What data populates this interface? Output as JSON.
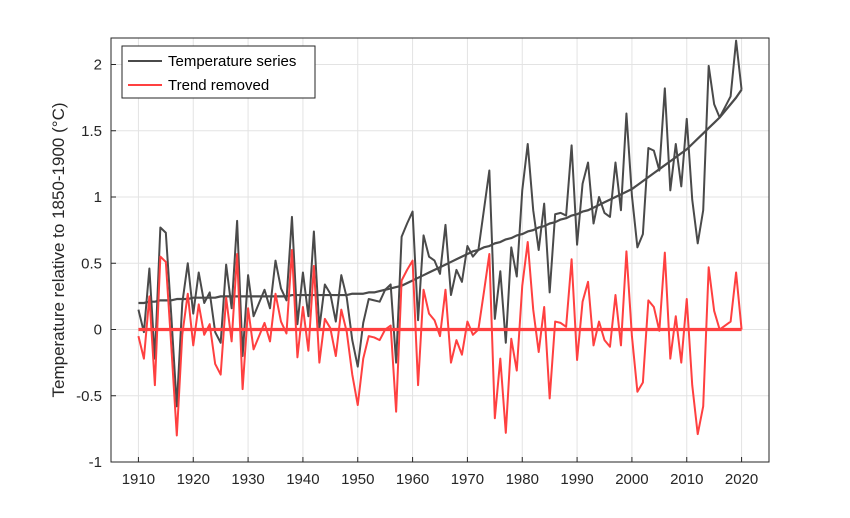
{
  "chart_data": {
    "type": "line",
    "xlabel": "",
    "ylabel": "Temperature relative to 1850-1900 (°C)",
    "xlim": [
      1905,
      2025
    ],
    "ylim": [
      -1,
      2.2
    ],
    "xticks": [
      1910,
      1920,
      1930,
      1940,
      1950,
      1960,
      1970,
      1980,
      1990,
      2000,
      2010,
      2020
    ],
    "yticks": [
      -1,
      -0.5,
      0,
      0.5,
      1,
      1.5,
      2
    ],
    "ytick_labels": [
      "-1",
      "-0.5",
      "0",
      "0.5",
      "1",
      "1.5",
      "2"
    ],
    "grid": true,
    "legend_position": "top-left",
    "x": [
      1910,
      1911,
      1912,
      1913,
      1914,
      1915,
      1916,
      1917,
      1918,
      1919,
      1920,
      1921,
      1922,
      1923,
      1924,
      1925,
      1926,
      1927,
      1928,
      1929,
      1930,
      1931,
      1932,
      1933,
      1934,
      1935,
      1936,
      1937,
      1938,
      1939,
      1940,
      1941,
      1942,
      1943,
      1944,
      1945,
      1946,
      1947,
      1948,
      1949,
      1950,
      1951,
      1952,
      1953,
      1954,
      1955,
      1956,
      1957,
      1958,
      1959,
      1960,
      1961,
      1962,
      1963,
      1964,
      1965,
      1966,
      1967,
      1968,
      1969,
      1970,
      1971,
      1972,
      1973,
      1974,
      1975,
      1976,
      1977,
      1978,
      1979,
      1980,
      1981,
      1982,
      1983,
      1984,
      1985,
      1986,
      1987,
      1988,
      1989,
      1990,
      1991,
      1992,
      1993,
      1994,
      1995,
      1996,
      1997,
      1998,
      1999,
      2000,
      2001,
      2002,
      2003,
      2004,
      2005,
      2006,
      2007,
      2008,
      2009,
      2010,
      2011,
      2012,
      2013,
      2014,
      2015,
      2016,
      2017,
      2018,
      2019,
      2020
    ],
    "series": [
      {
        "name": "Temperature series",
        "color": "#4a4a4a",
        "values": [
          0.15,
          -0.02,
          0.46,
          -0.22,
          0.77,
          0.73,
          0.1,
          -0.58,
          0.2,
          0.5,
          0.12,
          0.43,
          0.2,
          0.28,
          -0.02,
          -0.1,
          0.49,
          0.16,
          0.82,
          -0.2,
          0.41,
          0.1,
          0.2,
          0.3,
          0.16,
          0.52,
          0.31,
          0.22,
          0.85,
          0.04,
          0.43,
          0.1,
          0.74,
          0.01,
          0.34,
          0.27,
          0.06,
          0.41,
          0.24,
          -0.08,
          -0.28,
          0.05,
          0.23,
          0.22,
          0.21,
          0.3,
          0.34,
          -0.25,
          0.7,
          0.8,
          0.89,
          0.07,
          0.71,
          0.55,
          0.52,
          0.42,
          0.79,
          0.26,
          0.45,
          0.36,
          0.63,
          0.55,
          0.6,
          0.9,
          1.2,
          0.08,
          0.44,
          -0.1,
          0.62,
          0.4,
          1.05,
          1.4,
          0.9,
          0.6,
          0.95,
          0.28,
          0.87,
          0.88,
          0.86,
          1.39,
          0.64,
          1.1,
          1.26,
          0.8,
          1.0,
          0.88,
          0.85,
          1.26,
          0.9,
          1.63,
          1.01,
          0.62,
          0.72,
          1.37,
          1.35,
          1.2,
          1.82,
          1.05,
          1.4,
          1.08,
          1.59,
          0.98,
          0.65,
          0.9,
          1.99,
          1.7,
          1.6,
          1.68,
          1.76,
          2.18,
          1.81
        ]
      },
      {
        "name": "",
        "color": "#4a4a4a",
        "values": [
          0.2,
          0.2,
          0.21,
          0.21,
          0.22,
          0.22,
          0.22,
          0.23,
          0.23,
          0.23,
          0.24,
          0.24,
          0.24,
          0.24,
          0.24,
          0.25,
          0.25,
          0.25,
          0.25,
          0.25,
          0.25,
          0.25,
          0.25,
          0.25,
          0.25,
          0.25,
          0.25,
          0.25,
          0.26,
          0.26,
          0.26,
          0.26,
          0.26,
          0.26,
          0.26,
          0.26,
          0.26,
          0.26,
          0.26,
          0.27,
          0.27,
          0.27,
          0.28,
          0.28,
          0.29,
          0.3,
          0.31,
          0.32,
          0.33,
          0.35,
          0.37,
          0.39,
          0.41,
          0.43,
          0.45,
          0.47,
          0.49,
          0.51,
          0.53,
          0.55,
          0.57,
          0.59,
          0.6,
          0.62,
          0.63,
          0.65,
          0.66,
          0.68,
          0.69,
          0.71,
          0.72,
          0.74,
          0.75,
          0.77,
          0.78,
          0.8,
          0.81,
          0.83,
          0.84,
          0.86,
          0.87,
          0.89,
          0.9,
          0.92,
          0.94,
          0.96,
          0.98,
          1.0,
          1.02,
          1.04,
          1.06,
          1.09,
          1.12,
          1.15,
          1.18,
          1.21,
          1.24,
          1.27,
          1.3,
          1.33,
          1.36,
          1.4,
          1.44,
          1.48,
          1.52,
          1.56,
          1.6,
          1.65,
          1.7,
          1.75,
          1.81
        ]
      },
      {
        "name": "Trend removed",
        "color": "#ff4040",
        "values": [
          -0.05,
          -0.22,
          0.25,
          -0.42,
          0.55,
          0.51,
          -0.13,
          -0.8,
          -0.04,
          0.27,
          -0.12,
          0.19,
          -0.04,
          0.04,
          -0.26,
          -0.34,
          0.24,
          -0.09,
          0.57,
          -0.45,
          0.16,
          -0.15,
          -0.05,
          0.05,
          -0.09,
          0.27,
          0.06,
          -0.03,
          0.6,
          -0.21,
          0.17,
          -0.16,
          0.48,
          -0.25,
          0.08,
          0.01,
          -0.2,
          0.15,
          -0.02,
          -0.34,
          -0.57,
          -0.22,
          -0.05,
          -0.06,
          -0.08,
          0.0,
          0.03,
          -0.62,
          0.37,
          0.45,
          0.52,
          -0.42,
          0.3,
          0.12,
          0.07,
          -0.05,
          0.3,
          -0.25,
          -0.08,
          -0.19,
          0.06,
          -0.04,
          0.0,
          0.28,
          0.57,
          -0.67,
          -0.22,
          -0.78,
          -0.07,
          -0.31,
          0.33,
          0.66,
          0.15,
          -0.17,
          0.17,
          -0.52,
          0.06,
          0.05,
          0.02,
          0.53,
          -0.23,
          0.21,
          0.36,
          -0.12,
          0.06,
          -0.08,
          -0.13,
          0.26,
          -0.12,
          0.59,
          -0.05,
          -0.47,
          -0.4,
          0.22,
          0.17,
          -0.01,
          0.58,
          -0.22,
          0.1,
          -0.25,
          0.23,
          -0.42,
          -0.79,
          -0.58,
          0.47,
          0.14,
          0.0,
          0.03,
          0.06,
          0.43,
          0.0
        ]
      },
      {
        "name": "",
        "color": "#ff4040",
        "values": [
          0,
          0,
          0,
          0,
          0,
          0,
          0,
          0,
          0,
          0,
          0,
          0,
          0,
          0,
          0,
          0,
          0,
          0,
          0,
          0,
          0,
          0,
          0,
          0,
          0,
          0,
          0,
          0,
          0,
          0,
          0,
          0,
          0,
          0,
          0,
          0,
          0,
          0,
          0,
          0,
          0,
          0,
          0,
          0,
          0,
          0,
          0,
          0,
          0,
          0,
          0,
          0,
          0,
          0,
          0,
          0,
          0,
          0,
          0,
          0,
          0,
          0,
          0,
          0,
          0,
          0,
          0,
          0,
          0,
          0,
          0,
          0,
          0,
          0,
          0,
          0,
          0,
          0,
          0,
          0,
          0,
          0,
          0,
          0,
          0,
          0,
          0,
          0,
          0,
          0,
          0,
          0,
          0,
          0,
          0,
          0,
          0,
          0,
          0,
          0,
          0,
          0,
          0,
          0,
          0,
          0,
          0,
          0,
          0,
          0,
          0
        ]
      }
    ],
    "legend": [
      "Temperature series",
      "Trend removed"
    ]
  }
}
